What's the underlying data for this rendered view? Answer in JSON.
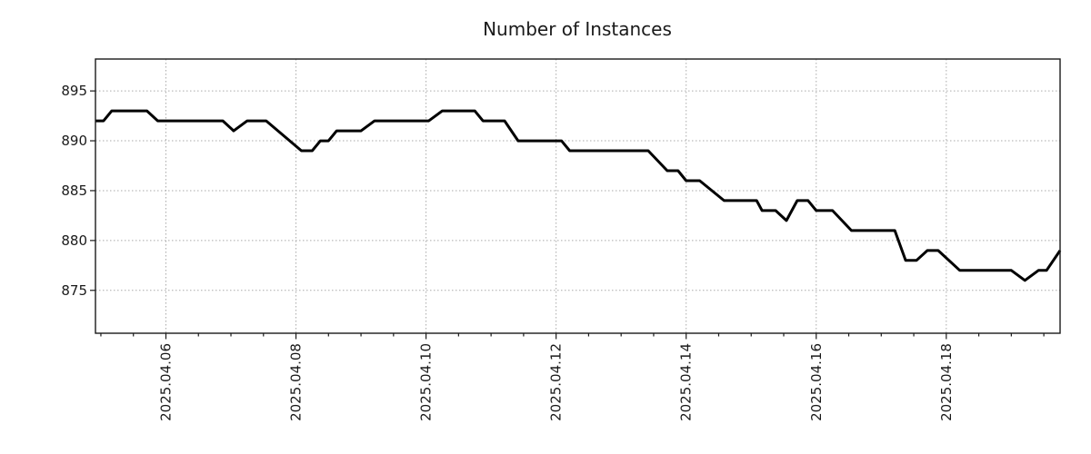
{
  "figure": {
    "background": "#ffffff"
  },
  "colors": {
    "line": "#000000",
    "grid": "#aaaaaa",
    "frame": "#1a1a1a",
    "text": "#1a1a1a"
  },
  "chart_data": {
    "type": "line",
    "title": "Number of Instances",
    "legend": "none",
    "x_axis": {
      "label": "",
      "range": [
        "2025-04-04 22:00",
        "2025-04-19 18:00"
      ],
      "major_ticks": [
        {
          "date": "2025-04-06 00:00",
          "label": "2025.04.06"
        },
        {
          "date": "2025-04-08 00:00",
          "label": "2025.04.08"
        },
        {
          "date": "2025-04-10 00:00",
          "label": "2025.04.10"
        },
        {
          "date": "2025-04-12 00:00",
          "label": "2025.04.12"
        },
        {
          "date": "2025-04-14 00:00",
          "label": "2025.04.14"
        },
        {
          "date": "2025-04-16 00:00",
          "label": "2025.04.16"
        },
        {
          "date": "2025-04-18 00:00",
          "label": "2025.04.18"
        }
      ],
      "minor_tick_interval_hours": 12,
      "tick_label_rotation_deg": 90,
      "grid": "dotted-at-major-ticks"
    },
    "y_axis": {
      "label": "",
      "range": [
        870.7,
        898.2
      ],
      "ticks": [
        875,
        880,
        885,
        890,
        895
      ],
      "grid": "dotted-at-ticks"
    },
    "series": [
      {
        "name": "instances",
        "color": "#000000",
        "line_width": 3,
        "points": [
          [
            "2025-04-04 22:00",
            892
          ],
          [
            "2025-04-05 01:00",
            892
          ],
          [
            "2025-04-05 04:00",
            893
          ],
          [
            "2025-04-05 17:00",
            893
          ],
          [
            "2025-04-05 21:00",
            892
          ],
          [
            "2025-04-06 21:00",
            892
          ],
          [
            "2025-04-07 01:00",
            891
          ],
          [
            "2025-04-07 06:00",
            892
          ],
          [
            "2025-04-07 13:00",
            892
          ],
          [
            "2025-04-08 02:00",
            889
          ],
          [
            "2025-04-08 06:00",
            889
          ],
          [
            "2025-04-08 09:00",
            890
          ],
          [
            "2025-04-08 12:00",
            890
          ],
          [
            "2025-04-08 15:00",
            891
          ],
          [
            "2025-04-09 00:00",
            891
          ],
          [
            "2025-04-09 05:00",
            892
          ],
          [
            "2025-04-10 01:00",
            892
          ],
          [
            "2025-04-10 06:00",
            893
          ],
          [
            "2025-04-10 18:00",
            893
          ],
          [
            "2025-04-10 21:00",
            892
          ],
          [
            "2025-04-11 05:00",
            892
          ],
          [
            "2025-04-11 10:00",
            890
          ],
          [
            "2025-04-12 02:00",
            890
          ],
          [
            "2025-04-12 05:00",
            889
          ],
          [
            "2025-04-13 10:00",
            889
          ],
          [
            "2025-04-13 17:00",
            887
          ],
          [
            "2025-04-13 21:00",
            887
          ],
          [
            "2025-04-14 00:00",
            886
          ],
          [
            "2025-04-14 05:00",
            886
          ],
          [
            "2025-04-14 14:00",
            884
          ],
          [
            "2025-04-15 02:00",
            884
          ],
          [
            "2025-04-15 04:00",
            883
          ],
          [
            "2025-04-15 09:00",
            883
          ],
          [
            "2025-04-15 13:00",
            882
          ],
          [
            "2025-04-15 17:00",
            884
          ],
          [
            "2025-04-15 21:00",
            884
          ],
          [
            "2025-04-16 00:00",
            883
          ],
          [
            "2025-04-16 06:00",
            883
          ],
          [
            "2025-04-16 13:00",
            881
          ],
          [
            "2025-04-17 05:00",
            881
          ],
          [
            "2025-04-17 09:00",
            878
          ],
          [
            "2025-04-17 13:00",
            878
          ],
          [
            "2025-04-17 17:00",
            879
          ],
          [
            "2025-04-17 21:00",
            879
          ],
          [
            "2025-04-18 05:00",
            877
          ],
          [
            "2025-04-19 00:00",
            877
          ],
          [
            "2025-04-19 05:00",
            876
          ],
          [
            "2025-04-19 10:00",
            877
          ],
          [
            "2025-04-19 13:00",
            877
          ],
          [
            "2025-04-19 18:00",
            879
          ]
        ]
      }
    ]
  }
}
